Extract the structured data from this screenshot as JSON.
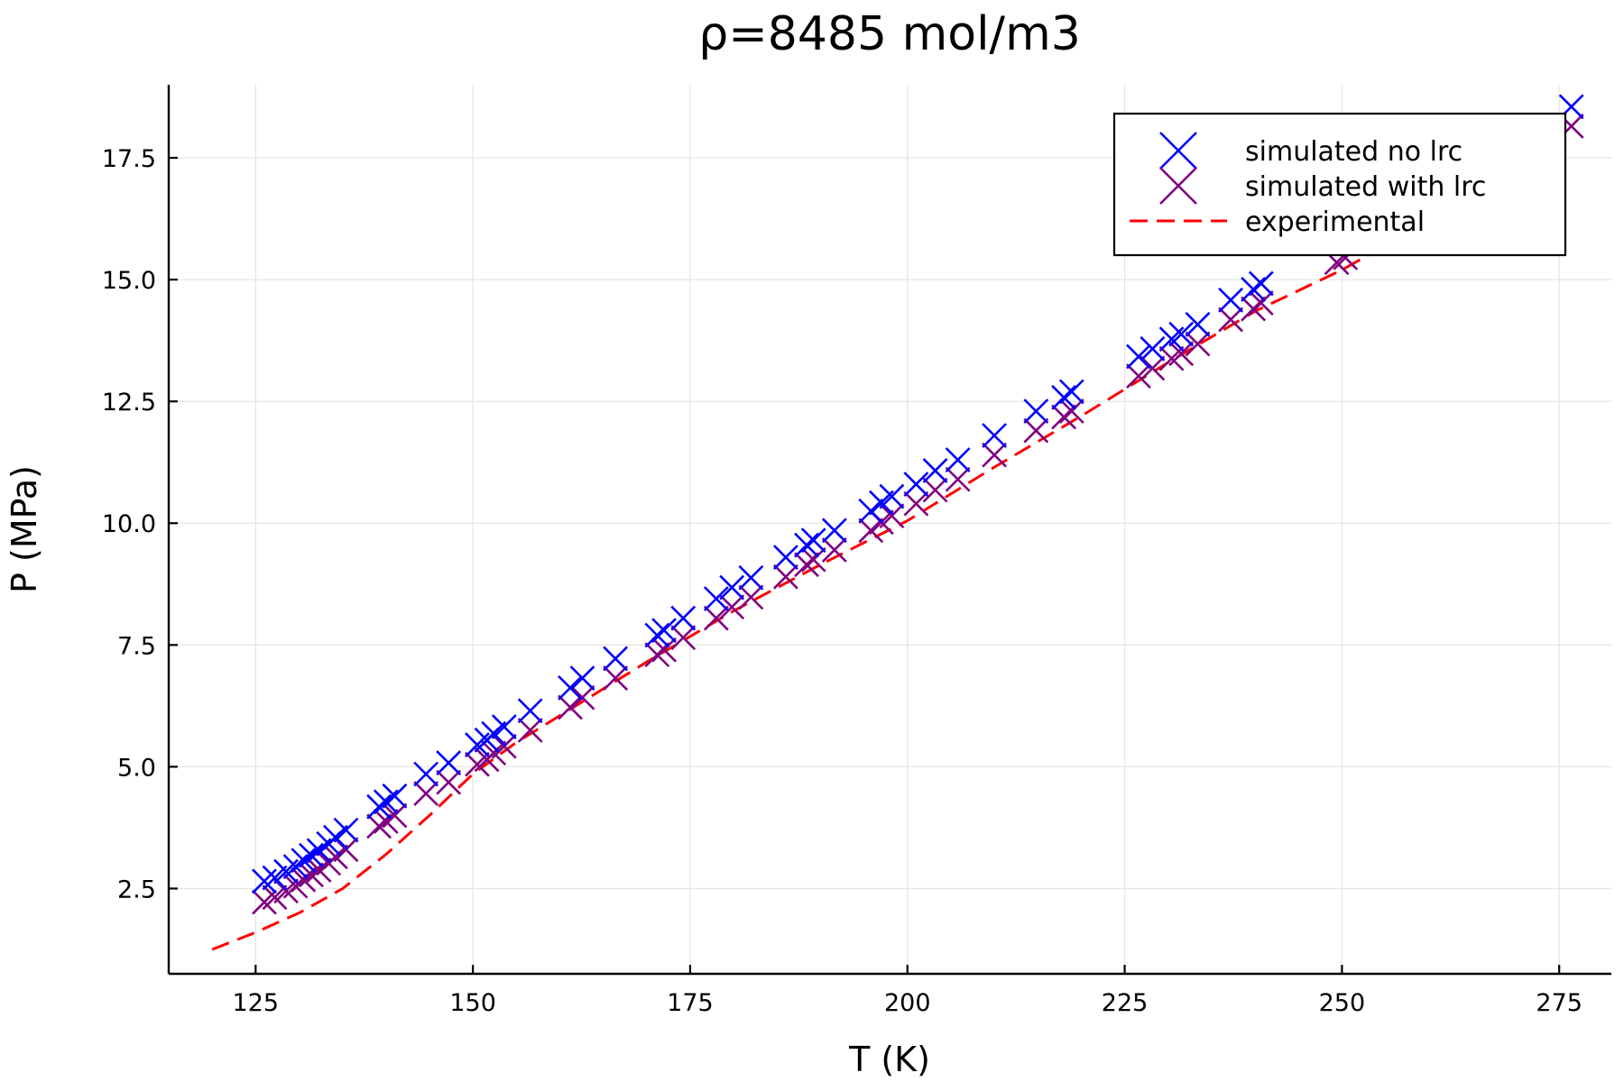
{
  "chart_data": {
    "type": "scatter",
    "title": "ρ=8485 mol/m3",
    "xlabel": "T (K)",
    "ylabel": "P (MPa)",
    "xlim": [
      115,
      281
    ],
    "ylim": [
      0.75,
      19
    ],
    "xticks": [
      125,
      150,
      175,
      200,
      225,
      250,
      275
    ],
    "yticks": [
      2.5,
      5.0,
      7.5,
      10.0,
      12.5,
      15.0,
      17.5
    ],
    "xtick_labels": [
      "125",
      "150",
      "175",
      "200",
      "225",
      "250",
      "275"
    ],
    "ytick_labels": [
      "2.5",
      "5.0",
      "7.5",
      "10.0",
      "12.5",
      "15.0",
      "17.5"
    ],
    "grid": true,
    "legend_position": "top-right",
    "series": [
      {
        "name": "simulated no lrc",
        "kind": "scatter",
        "marker": "x",
        "color": "#0000ff",
        "points": [
          [
            126.0,
            2.65
          ],
          [
            127.2,
            2.72
          ],
          [
            128.5,
            2.85
          ],
          [
            129.6,
            2.95
          ],
          [
            130.5,
            3.08
          ],
          [
            131.4,
            3.18
          ],
          [
            132.3,
            3.28
          ],
          [
            133.4,
            3.42
          ],
          [
            134.2,
            3.55
          ],
          [
            135.4,
            3.7
          ],
          [
            139.2,
            4.18
          ],
          [
            140.0,
            4.28
          ],
          [
            141.0,
            4.4
          ],
          [
            144.6,
            4.85
          ],
          [
            147.2,
            5.08
          ],
          [
            150.5,
            5.45
          ],
          [
            151.6,
            5.55
          ],
          [
            152.4,
            5.68
          ],
          [
            153.6,
            5.82
          ],
          [
            156.6,
            6.15
          ],
          [
            161.2,
            6.62
          ],
          [
            162.6,
            6.82
          ],
          [
            166.4,
            7.22
          ],
          [
            171.2,
            7.7
          ],
          [
            172.0,
            7.8
          ],
          [
            174.2,
            8.05
          ],
          [
            178.0,
            8.45
          ],
          [
            179.8,
            8.68
          ],
          [
            182.0,
            8.88
          ],
          [
            186.0,
            9.3
          ],
          [
            188.4,
            9.55
          ],
          [
            189.2,
            9.65
          ],
          [
            191.6,
            9.85
          ],
          [
            195.8,
            10.25
          ],
          [
            197.0,
            10.42
          ],
          [
            198.2,
            10.55
          ],
          [
            201.0,
            10.8
          ],
          [
            203.2,
            11.08
          ],
          [
            205.8,
            11.3
          ],
          [
            210.0,
            11.8
          ],
          [
            214.8,
            12.3
          ],
          [
            218.0,
            12.58
          ],
          [
            218.9,
            12.7
          ],
          [
            226.6,
            13.42
          ],
          [
            228.2,
            13.58
          ],
          [
            230.4,
            13.78
          ],
          [
            231.5,
            13.88
          ],
          [
            233.4,
            14.08
          ],
          [
            237.2,
            14.58
          ],
          [
            239.8,
            14.8
          ],
          [
            240.7,
            14.92
          ],
          [
            249.4,
            15.75
          ],
          [
            250.4,
            15.85
          ],
          [
            276.4,
            18.55
          ]
        ]
      },
      {
        "name": "simulated with lrc",
        "kind": "scatter",
        "marker": "x",
        "color": "#800080",
        "points": [
          [
            126.0,
            2.22
          ],
          [
            127.2,
            2.32
          ],
          [
            128.5,
            2.45
          ],
          [
            129.6,
            2.55
          ],
          [
            130.5,
            2.68
          ],
          [
            131.4,
            2.78
          ],
          [
            132.3,
            2.88
          ],
          [
            133.4,
            3.02
          ],
          [
            134.2,
            3.15
          ],
          [
            135.4,
            3.3
          ],
          [
            139.2,
            3.78
          ],
          [
            140.0,
            3.88
          ],
          [
            141.0,
            4.0
          ],
          [
            144.6,
            4.45
          ],
          [
            147.2,
            4.68
          ],
          [
            150.5,
            5.05
          ],
          [
            151.6,
            5.15
          ],
          [
            152.4,
            5.28
          ],
          [
            153.6,
            5.42
          ],
          [
            156.6,
            5.75
          ],
          [
            161.2,
            6.22
          ],
          [
            162.6,
            6.42
          ],
          [
            166.4,
            6.82
          ],
          [
            171.2,
            7.3
          ],
          [
            172.0,
            7.4
          ],
          [
            174.2,
            7.65
          ],
          [
            178.0,
            8.05
          ],
          [
            179.8,
            8.28
          ],
          [
            182.0,
            8.48
          ],
          [
            186.0,
            8.9
          ],
          [
            188.4,
            9.15
          ],
          [
            189.2,
            9.25
          ],
          [
            191.6,
            9.45
          ],
          [
            195.8,
            9.85
          ],
          [
            197.0,
            10.02
          ],
          [
            198.2,
            10.15
          ],
          [
            201.0,
            10.4
          ],
          [
            203.2,
            10.68
          ],
          [
            205.8,
            10.9
          ],
          [
            210.0,
            11.4
          ],
          [
            214.8,
            11.9
          ],
          [
            218.0,
            12.18
          ],
          [
            218.9,
            12.3
          ],
          [
            226.6,
            13.02
          ],
          [
            228.2,
            13.18
          ],
          [
            230.4,
            13.38
          ],
          [
            231.5,
            13.48
          ],
          [
            233.4,
            13.68
          ],
          [
            237.2,
            14.18
          ],
          [
            239.8,
            14.4
          ],
          [
            240.7,
            14.52
          ],
          [
            249.4,
            15.35
          ],
          [
            250.4,
            15.45
          ],
          [
            276.4,
            18.15
          ]
        ]
      },
      {
        "name": "experimental",
        "kind": "line",
        "dash": "dashed",
        "color": "#ff0000",
        "points": [
          [
            120.0,
            1.25
          ],
          [
            125.0,
            1.6
          ],
          [
            130.0,
            2.0
          ],
          [
            135.0,
            2.5
          ],
          [
            140.0,
            3.2
          ],
          [
            145.0,
            4.0
          ],
          [
            150.0,
            4.85
          ],
          [
            155.0,
            5.5
          ],
          [
            160.0,
            6.05
          ],
          [
            170.0,
            7.15
          ],
          [
            180.0,
            8.2
          ],
          [
            190.0,
            9.15
          ],
          [
            200.0,
            10.05
          ],
          [
            210.0,
            11.15
          ],
          [
            220.0,
            12.2
          ],
          [
            230.0,
            13.3
          ],
          [
            240.0,
            14.35
          ],
          [
            250.0,
            15.2
          ],
          [
            255.0,
            15.7
          ]
        ]
      }
    ]
  }
}
